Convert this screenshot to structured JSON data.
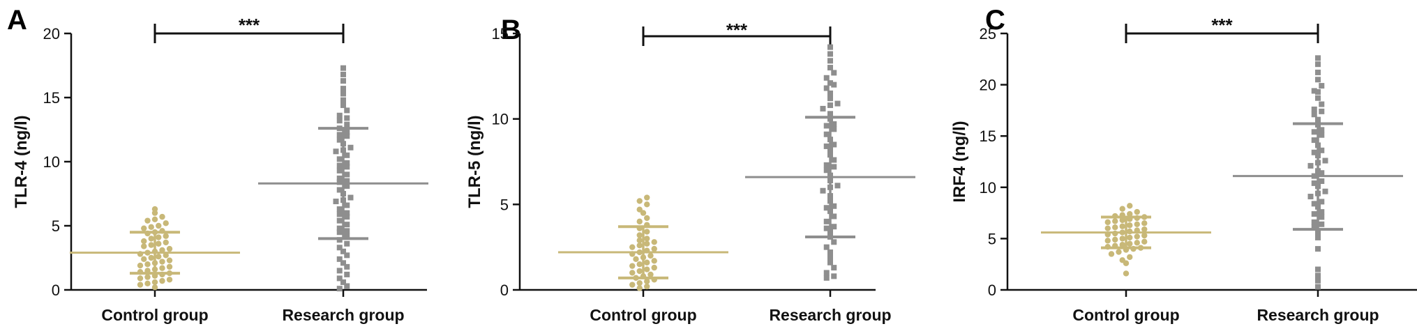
{
  "colors": {
    "control": "#C8B878",
    "research": "#8E8E8E",
    "axis": "#111111"
  },
  "chart_data": [
    {
      "type": "scatter",
      "panel": "A",
      "ylabel": "TLR-4 (ng/l)",
      "ylim": [
        0,
        20
      ],
      "yticks": [
        "0",
        "5",
        "10",
        "15",
        "20"
      ],
      "categories": [
        "Control group",
        "Research group"
      ],
      "significance": "***",
      "series": [
        {
          "mean": 2.9,
          "sd_low": 1.3,
          "sd_high": 4.5,
          "values": [
            6.3,
            6.0,
            5.7,
            5.5,
            5.4,
            5.2,
            5.0,
            4.9,
            4.8,
            4.6,
            4.5,
            4.4,
            4.2,
            4.1,
            4.0,
            3.8,
            3.7,
            3.6,
            3.5,
            3.4,
            3.2,
            3.1,
            3.0,
            2.9,
            2.8,
            2.7,
            2.6,
            2.5,
            2.4,
            2.3,
            2.2,
            2.1,
            2.0,
            1.9,
            1.8,
            1.7,
            1.6,
            1.5,
            1.4,
            1.3,
            1.2,
            1.1,
            1.0,
            0.9,
            0.8,
            0.7,
            0.6,
            0.5,
            0.4,
            0.2
          ]
        },
        {
          "mean": 8.3,
          "sd_low": 4.0,
          "sd_high": 12.6,
          "values": [
            17.3,
            16.8,
            16.3,
            15.7,
            15.3,
            14.8,
            14.4,
            14.0,
            13.6,
            13.2,
            12.9,
            12.6,
            12.3,
            12.0,
            11.7,
            11.4,
            11.1,
            10.8,
            10.5,
            10.2,
            9.9,
            9.6,
            9.3,
            9.0,
            8.7,
            8.4,
            8.1,
            7.8,
            7.5,
            7.2,
            6.9,
            6.6,
            6.3,
            6.0,
            5.7,
            5.4,
            5.1,
            4.8,
            4.5,
            4.2,
            3.9,
            3.6,
            3.3,
            3.0,
            2.7,
            2.4,
            2.1,
            1.8,
            1.5,
            1.2,
            0.9,
            0.6,
            0.3,
            0.1,
            13.4,
            12.1,
            10.9,
            9.7,
            8.5,
            7.0,
            5.9,
            4.6
          ]
        }
      ]
    },
    {
      "type": "scatter",
      "panel": "B",
      "ylabel": "TLR-5 (ng/l)",
      "ylim": [
        0,
        15
      ],
      "yticks": [
        "0",
        "5",
        "10",
        "15"
      ],
      "categories": [
        "Control group",
        "Research group"
      ],
      "significance": "***",
      "series": [
        {
          "mean": 2.2,
          "sd_low": 0.7,
          "sd_high": 3.7,
          "values": [
            5.4,
            5.2,
            5.0,
            4.7,
            4.5,
            4.2,
            4.0,
            3.8,
            3.6,
            3.4,
            3.2,
            3.0,
            2.9,
            2.8,
            2.7,
            2.6,
            2.5,
            2.4,
            2.3,
            2.2,
            2.1,
            2.0,
            1.9,
            1.8,
            1.7,
            1.6,
            1.5,
            1.4,
            1.3,
            1.2,
            1.1,
            1.0,
            0.9,
            0.8,
            0.7,
            0.6,
            0.5,
            0.4,
            0.3,
            0.2,
            0.1
          ]
        },
        {
          "mean": 6.6,
          "sd_low": 3.1,
          "sd_high": 10.1,
          "values": [
            14.2,
            13.8,
            13.4,
            13.0,
            12.7,
            12.4,
            12.1,
            11.8,
            11.5,
            11.2,
            10.9,
            10.6,
            10.3,
            10.0,
            9.7,
            9.4,
            9.1,
            8.8,
            8.5,
            8.2,
            7.9,
            7.6,
            7.3,
            7.0,
            6.7,
            6.4,
            6.1,
            5.8,
            5.5,
            5.2,
            4.9,
            4.6,
            4.3,
            4.0,
            3.7,
            3.4,
            3.1,
            2.8,
            2.5,
            2.2,
            1.9,
            1.6,
            1.3,
            1.0,
            0.8,
            0.7,
            12.0,
            10.8,
            9.6,
            8.4,
            7.2,
            6.0,
            4.8,
            3.6
          ]
        }
      ]
    },
    {
      "type": "scatter",
      "panel": "C",
      "ylabel": "IRF4 (ng/l)",
      "ylim": [
        0,
        25
      ],
      "yticks": [
        "0",
        "5",
        "10",
        "15",
        "20",
        "25"
      ],
      "categories": [
        "Control group",
        "Research group"
      ],
      "significance": "***",
      "series": [
        {
          "mean": 5.6,
          "sd_low": 4.1,
          "sd_high": 7.1,
          "values": [
            8.2,
            7.9,
            7.6,
            7.4,
            7.3,
            7.2,
            7.1,
            7.0,
            6.9,
            6.8,
            6.7,
            6.6,
            6.5,
            6.4,
            6.3,
            6.2,
            6.1,
            6.0,
            5.9,
            5.8,
            5.7,
            5.6,
            5.5,
            5.4,
            5.3,
            5.2,
            5.1,
            5.0,
            4.9,
            4.8,
            4.7,
            4.6,
            4.5,
            4.4,
            4.3,
            4.2,
            4.1,
            4.0,
            3.9,
            3.7,
            3.5,
            3.2,
            2.9,
            2.6,
            1.6
          ]
        },
        {
          "mean": 11.1,
          "sd_low": 5.9,
          "sd_high": 16.2,
          "values": [
            22.6,
            22.0,
            21.2,
            20.5,
            19.9,
            19.3,
            18.7,
            18.1,
            17.6,
            17.1,
            16.6,
            16.1,
            15.6,
            15.1,
            14.6,
            14.1,
            13.6,
            13.1,
            12.6,
            12.1,
            11.6,
            11.1,
            10.6,
            10.1,
            9.6,
            9.1,
            8.6,
            8.1,
            7.6,
            7.1,
            6.6,
            6.1,
            5.6,
            5.1,
            4.0,
            2.0,
            1.4,
            0.9,
            0.3,
            13.4,
            12.4,
            11.4,
            10.4,
            9.4,
            8.4,
            7.4,
            6.4,
            15.4,
            17.4,
            19.4
          ]
        }
      ]
    }
  ]
}
